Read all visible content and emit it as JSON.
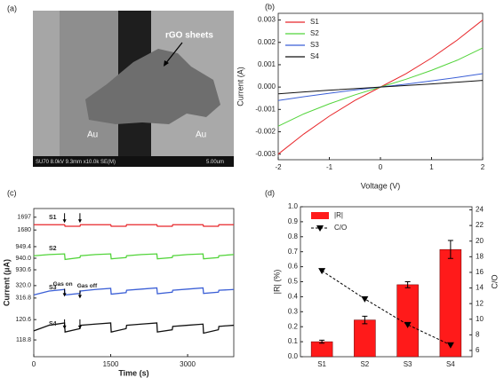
{
  "image_panel": {
    "label": "(a)",
    "annotation": "rGO sheets",
    "electrodes": [
      "Au",
      "Au"
    ],
    "info_bar": "SU70 8.0kV 9.3mm x10.0k SE(M)",
    "scale_bar": "5.00um"
  },
  "chart_data": [
    {
      "type": "line",
      "panel_label": "(b)",
      "xlabel": "Voltage (V)",
      "ylabel": "Current (A)",
      "x": [
        -2,
        -1.5,
        -1,
        -0.5,
        0,
        0.5,
        1,
        1.5,
        2
      ],
      "xlim": [
        -2,
        2
      ],
      "xticks": [
        -2,
        -1,
        0,
        1,
        2
      ],
      "ylim": [
        -0.00325,
        0.0033
      ],
      "yticks": [
        -0.003,
        -0.002,
        -0.001,
        {
          "value": 0,
          "label": "0.000"
        },
        0.001,
        0.002,
        0.003
      ],
      "legend": "upper left",
      "series": [
        {
          "name": "S1",
          "color": "#e8262a",
          "values": [
            -0.003,
            -0.0021,
            -0.0013,
            -0.0006,
            0,
            0.0006,
            0.0013,
            0.0021,
            0.003
          ]
        },
        {
          "name": "S2",
          "color": "#52d43a",
          "values": [
            -0.00175,
            -0.0012,
            -0.00075,
            -0.00035,
            0,
            0.00035,
            0.00075,
            0.0012,
            0.00175
          ]
        },
        {
          "name": "S3",
          "color": "#3b5fd6",
          "values": [
            -0.0006,
            -0.00043,
            -0.00028,
            -0.00013,
            0,
            0.00013,
            0.00028,
            0.00043,
            0.0006
          ]
        },
        {
          "name": "S4",
          "color": "#111111",
          "values": [
            -0.0003,
            -0.00022,
            -0.00014,
            -7e-05,
            0,
            7e-05,
            0.00014,
            0.00022,
            0.0003
          ]
        }
      ]
    },
    {
      "type": "line",
      "panel_label": "(c)",
      "xlabel": "Time (s)",
      "ylabel": "Current (μA)",
      "x": [
        0,
        300,
        600,
        610,
        900,
        910,
        1200,
        1500,
        1510,
        1800,
        1810,
        2100,
        2400,
        2410,
        2700,
        2710,
        3000,
        3300,
        3310,
        3600,
        3610,
        3900
      ],
      "xlim": [
        0,
        3900
      ],
      "xticks": [
        0,
        1500,
        3000
      ],
      "annotations": [
        "Gas on",
        "Gas off"
      ],
      "series": [
        {
          "name": "S1",
          "color": "#e8262a",
          "ylim": [
            1672,
            1705
          ],
          "yticks": [
            1697,
            1680
          ],
          "values": [
            1687,
            1687,
            1687,
            1685,
            1685,
            1687,
            1687,
            1687,
            1685,
            1685,
            1687,
            1687,
            1687,
            1685,
            1685,
            1687,
            1687,
            1687,
            1685,
            1685,
            1687,
            1687
          ]
        },
        {
          "name": "S2",
          "color": "#52d43a",
          "ylim": [
            926.3,
            953.7
          ],
          "yticks": [
            949.4,
            {
              "value": 940,
              "label": "940.0"
            },
            930.6
          ],
          "values": [
            942,
            943,
            943.5,
            939,
            940.5,
            942,
            943,
            943.5,
            939.5,
            940.5,
            942,
            943,
            943.5,
            939.5,
            940.5,
            942,
            943,
            943.5,
            939.5,
            940.5,
            942,
            943
          ]
        },
        {
          "name": "S3",
          "color": "#3b5fd6",
          "ylim": [
            315.4,
            321.8
          ],
          "yticks": [
            {
              "value": 320,
              "label": "320.0"
            },
            316.8
          ],
          "values": [
            317.6,
            318.6,
            319,
            317.6,
            318,
            318.6,
            319,
            319.3,
            317.8,
            318.2,
            318.8,
            319.1,
            319.4,
            317.9,
            318.3,
            318.8,
            319.1,
            319.4,
            318,
            318.3,
            318.8,
            319
          ]
        },
        {
          "name": "S4",
          "color": "#111111",
          "ylim": [
            118.1,
            121.4
          ],
          "yticks": [
            120.6,
            118.8
          ],
          "values": [
            119.6,
            120.1,
            120.3,
            119.5,
            119.8,
            120.1,
            120.2,
            120.3,
            119.5,
            119.8,
            120.1,
            120.2,
            120.3,
            119.5,
            119.7,
            120,
            120.1,
            120.2,
            119.4,
            119.7,
            120,
            120.1
          ]
        }
      ]
    },
    {
      "type": "bar",
      "panel_label": "(d)",
      "categories": [
        "S1",
        "S2",
        "S3",
        "S4"
      ],
      "ylabel": "|R| (%)",
      "y2label": "C/O",
      "ylim": [
        0,
        1
      ],
      "yticks": [
        {
          "value": 0,
          "label": "0.0"
        },
        0.1,
        0.2,
        0.3,
        0.4,
        0.5,
        0.6,
        0.7,
        0.8,
        0.9,
        {
          "value": 1,
          "label": "1.0"
        }
      ],
      "y2lim": [
        5.2,
        24.4
      ],
      "y2ticks": [
        6,
        8,
        10,
        12,
        14,
        16,
        18,
        20,
        22,
        24
      ],
      "legend": "upper left",
      "series": [
        {
          "name": "|R|",
          "color": "#ff1a1a",
          "values": [
            0.1,
            0.245,
            0.48,
            0.715
          ],
          "errors": [
            0.01,
            0.025,
            0.02,
            0.06
          ]
        },
        {
          "name": "C/O",
          "type": "line",
          "axis": "y2",
          "color": "#000000",
          "dashed": true,
          "values": [
            16.2,
            12.6,
            9.3,
            6.7
          ]
        }
      ]
    }
  ]
}
